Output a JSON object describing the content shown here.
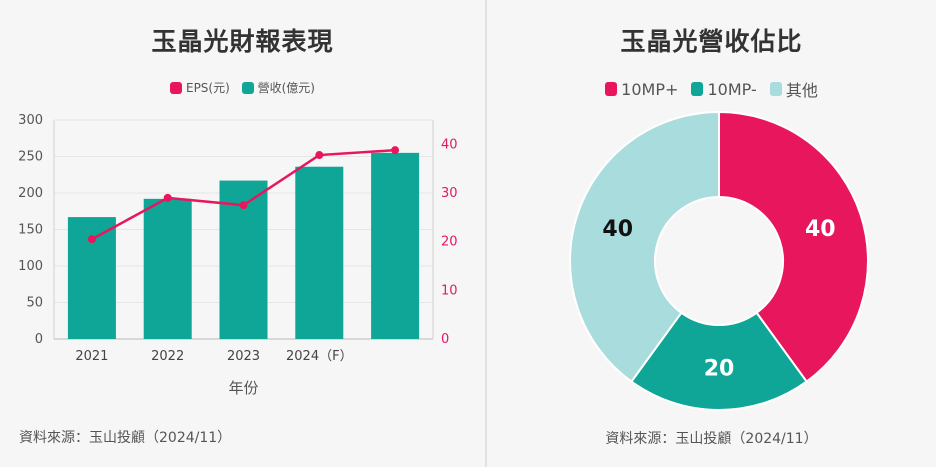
{
  "left": {
    "title": "玉晶光財報表現",
    "legend": [
      {
        "label": "EPS(元)",
        "color": "#e8175d"
      },
      {
        "label": "營收(億元)",
        "color": "#0fa597"
      }
    ],
    "source": "資料來源：玉山投顧（2024/11）"
  },
  "right": {
    "title": "玉晶光營收佔比",
    "legend": [
      {
        "label": "10MP+",
        "color": "#e8175d"
      },
      {
        "label": "10MP-",
        "color": "#0fa597"
      },
      {
        "label": "其他",
        "color": "#a9dcdc"
      }
    ],
    "source": "資料來源：玉山投顧（2024/11）"
  },
  "chart_data": [
    {
      "type": "bar",
      "title": "玉晶光財報表現",
      "xlabel": "年份",
      "categories": [
        "2021",
        "2022",
        "2023",
        "2024（F）",
        ""
      ],
      "series": [
        {
          "name": "營收(億元)",
          "type": "bar",
          "axis": "left",
          "color": "#0fa597",
          "values": [
            167,
            192,
            217,
            236,
            255
          ]
        },
        {
          "name": "EPS(元)",
          "type": "line",
          "axis": "right",
          "color": "#e8175d",
          "values": [
            20.5,
            29.0,
            27.5,
            37.8,
            38.8
          ]
        }
      ],
      "ylim": [
        0,
        300
      ],
      "y_ticks": [
        0,
        50,
        100,
        150,
        200,
        250,
        300
      ],
      "y2lim": [
        0,
        45
      ],
      "y2_ticks": [
        0,
        10,
        20,
        30,
        40
      ],
      "legend_position": "top-center",
      "grid": true
    },
    {
      "type": "pie",
      "style": "donut",
      "title": "玉晶光營收佔比",
      "labels": [
        "10MP+",
        "10MP-",
        "其他"
      ],
      "values": [
        40,
        20,
        40
      ],
      "colors": [
        "#e8175d",
        "#0fa597",
        "#a9dcdc"
      ],
      "label_colors": [
        "#ffffff",
        "#ffffff",
        "#111111"
      ],
      "legend_position": "top-center"
    }
  ]
}
